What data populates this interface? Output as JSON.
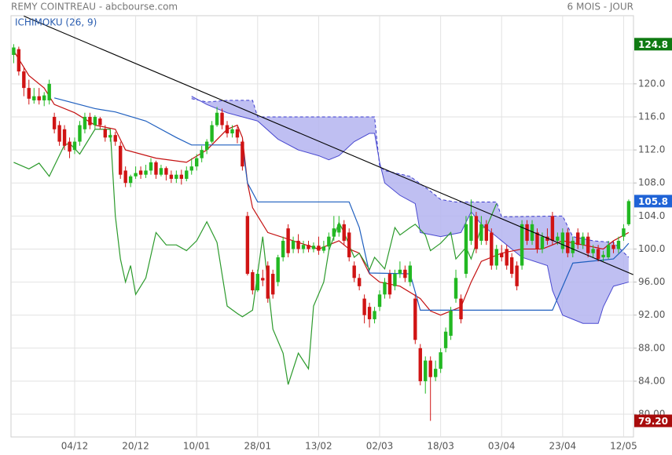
{
  "chart_data": {
    "type": "candlestick",
    "title": "REMY COINTREAU - abcbourse.com",
    "subtitle": "6 MOIS - JOUR",
    "indicator_label": "ICHIMOKU (26, 9)",
    "categories": [
      null,
      null,
      null,
      null,
      null,
      null,
      null,
      null,
      null,
      null,
      null,
      null,
      "04/12",
      null,
      null,
      null,
      null,
      null,
      null,
      null,
      null,
      null,
      null,
      null,
      "20/12",
      null,
      null,
      null,
      null,
      null,
      null,
      null,
      null,
      null,
      null,
      null,
      "10/01",
      null,
      null,
      null,
      null,
      null,
      null,
      null,
      null,
      null,
      null,
      null,
      "28/01",
      null,
      null,
      null,
      null,
      null,
      null,
      null,
      null,
      null,
      null,
      null,
      "13/02",
      null,
      null,
      null,
      null,
      null,
      null,
      null,
      null,
      null,
      null,
      null,
      "02/03",
      null,
      null,
      null,
      null,
      null,
      null,
      null,
      null,
      null,
      null,
      null,
      "18/03",
      null,
      null,
      null,
      null,
      null,
      null,
      null,
      null,
      null,
      null,
      null,
      "03/04",
      null,
      null,
      null,
      null,
      null,
      null,
      null,
      null,
      null,
      null,
      null,
      "23/04",
      null,
      null,
      null,
      null,
      null,
      null,
      null,
      null,
      null,
      null,
      null,
      "12/05",
      null
    ],
    "open": [
      123.5,
      124.2,
      121.5,
      119.5,
      118,
      118.5,
      118,
      118,
      116,
      115,
      114.5,
      113,
      112,
      113,
      114.5,
      116,
      115,
      115.8,
      114.5,
      113.5,
      113.8,
      112.5,
      109.5,
      108,
      108.8,
      109.5,
      109,
      109.5,
      110.5,
      109,
      109.8,
      109,
      108.5,
      109,
      108.5,
      109.5,
      110,
      111,
      112,
      113,
      115,
      116.5,
      115,
      114,
      114.5,
      113,
      104,
      97.2,
      95,
      96.5,
      98,
      97,
      96,
      99,
      102.5,
      100,
      101,
      100,
      100.5,
      100,
      100.4,
      99.8,
      100.3,
      101.5,
      102,
      103,
      102,
      98,
      96.5,
      94,
      93,
      91.5,
      93,
      94.5,
      97,
      95.5,
      97,
      97.5,
      96,
      94,
      88,
      84,
      86.5,
      84.5,
      85.5,
      88,
      89.5,
      94,
      94,
      97,
      101,
      104,
      101,
      103,
      102,
      98,
      99.5,
      100,
      99,
      98,
      98,
      103,
      101,
      102,
      100,
      101.5,
      104,
      101,
      100,
      102,
      99.5,
      102,
      100.5,
      101.5,
      99.5,
      100,
      99,
      99,
      100.5,
      100,
      101.5,
      103
    ],
    "high": [
      124.8,
      124.5,
      122,
      120.5,
      119.5,
      119.5,
      119,
      120.5,
      116.5,
      115.5,
      115,
      113.5,
      113.5,
      115.5,
      116.5,
      116.5,
      116.2,
      116,
      115,
      114.5,
      114.2,
      113,
      110,
      109,
      110,
      110,
      110.2,
      111,
      110.7,
      110.2,
      110,
      109.5,
      109.5,
      109.6,
      110,
      111,
      111.5,
      112.5,
      113.3,
      115.5,
      117.2,
      117,
      115.5,
      115,
      114.8,
      113.2,
      104.5,
      97.5,
      97.5,
      97.5,
      98.5,
      97.5,
      99.3,
      101.5,
      103,
      101.5,
      101.8,
      101,
      101,
      100.8,
      101.5,
      101,
      102,
      104,
      104,
      103.5,
      102.5,
      98.5,
      97,
      94.5,
      93.5,
      93,
      95,
      96.5,
      97.5,
      97.5,
      98.5,
      98,
      98.5,
      94.5,
      88.5,
      87,
      87,
      86.5,
      88,
      90.5,
      93,
      97.5,
      94.5,
      104,
      106,
      104.5,
      104,
      103.5,
      102.5,
      100.5,
      100.5,
      100.5,
      99.5,
      98.5,
      103.5,
      103.5,
      103.5,
      102.5,
      102,
      102.5,
      104.5,
      102,
      102.5,
      102.5,
      101.5,
      102.5,
      102,
      102,
      100.5,
      100.5,
      99.8,
      101,
      101,
      101.5,
      103,
      106
    ],
    "low": [
      122.5,
      121,
      118.5,
      117.5,
      117.6,
      117.5,
      117.3,
      117.5,
      114,
      112.5,
      112,
      111,
      111.5,
      112.5,
      114,
      114.5,
      114.5,
      114.5,
      113,
      113,
      112.5,
      108.5,
      107.5,
      107.5,
      108.5,
      108.5,
      108.6,
      109,
      108.5,
      108.8,
      108.3,
      108,
      108,
      107.8,
      108.2,
      109,
      109.5,
      110.5,
      111.5,
      112.8,
      114.8,
      114.5,
      113.5,
      113.5,
      112.8,
      109.5,
      96.8,
      94.5,
      94.8,
      95.5,
      93.5,
      94,
      95.5,
      98.5,
      99,
      99.5,
      99.5,
      99.5,
      99.6,
      99.6,
      99.3,
      99.5,
      99.8,
      101,
      101.5,
      100.5,
      98.5,
      96,
      95,
      91,
      90.5,
      91,
      92.5,
      94,
      94,
      95,
      96.5,
      96,
      95.5,
      88.5,
      83.5,
      82.5,
      79.2,
      84,
      85,
      87.5,
      89,
      93.5,
      91,
      96.5,
      100.5,
      99.5,
      100.5,
      100.5,
      97.5,
      97.5,
      98.5,
      97.5,
      96.5,
      95,
      97.5,
      100.5,
      100.5,
      99.5,
      99.5,
      100.5,
      100.5,
      100.5,
      99.5,
      99,
      99,
      100,
      100,
      99,
      99,
      98.5,
      98.5,
      98.8,
      99.5,
      99.5,
      101,
      102.8
    ],
    "close": [
      124.4,
      121.5,
      119.5,
      118.2,
      118.5,
      118,
      118.6,
      120,
      114.5,
      113,
      112.5,
      111.8,
      113,
      115,
      116,
      115,
      116,
      115,
      113.5,
      113.8,
      113,
      109,
      108,
      108.8,
      109.2,
      109,
      109.5,
      110.5,
      109,
      109.8,
      109,
      108.5,
      109,
      108.5,
      109.5,
      110,
      111,
      112,
      113,
      115,
      116.5,
      115,
      114,
      114.5,
      113.5,
      110,
      97,
      95,
      97,
      96.2,
      94,
      94.5,
      99,
      101,
      99.5,
      101,
      100,
      100.5,
      100,
      100.4,
      99.8,
      100.3,
      101.5,
      102.5,
      103,
      101,
      99,
      96.5,
      95.5,
      92,
      91.5,
      92.5,
      94.5,
      96,
      94.5,
      97,
      97.5,
      96.5,
      98,
      89,
      84,
      86.5,
      84.5,
      85.5,
      87.5,
      90,
      92.5,
      96.5,
      91.5,
      103,
      104,
      100,
      103,
      101,
      98,
      100,
      99,
      98,
      97,
      95.5,
      103,
      101,
      103,
      100,
      101.5,
      101,
      101,
      101.5,
      102,
      99.5,
      101,
      100.5,
      101.5,
      99.5,
      100,
      98.8,
      99.3,
      100.5,
      100,
      101,
      102.5,
      105.8
    ],
    "up_color": "#22b822",
    "down_color": "#d01414",
    "ylim": [
      77.25,
      128.25
    ],
    "yticks": [
      {
        "value": 80,
        "label": "80.00"
      },
      {
        "value": 84,
        "label": "84.00"
      },
      {
        "value": 88,
        "label": "88.00"
      },
      {
        "value": 92,
        "label": "92.00"
      },
      {
        "value": 96,
        "label": "96.00"
      },
      {
        "value": 100,
        "label": "100.0"
      },
      {
        "value": 104,
        "label": "104.0"
      },
      {
        "value": 108,
        "label": "108.0"
      },
      {
        "value": 112,
        "label": "112.0"
      },
      {
        "value": 116,
        "label": "116.0"
      },
      {
        "value": 120,
        "label": "120.0"
      }
    ],
    "grid": true,
    "cloud": {
      "fill": "#b4b4f0",
      "upper": {
        "color": "#3a3acc",
        "dashed": true,
        "x": [
          35,
          38,
          42,
          47,
          48,
          55,
          71,
          72,
          73,
          78,
          82,
          84,
          87,
          95,
          96,
          108,
          110,
          114,
          118,
          121
        ],
        "values": [
          118.2,
          117.8,
          118,
          118,
          116,
          116,
          116,
          110,
          109.5,
          108.8,
          107,
          106,
          105.7,
          105.7,
          103.9,
          104,
          101.5,
          101,
          100.8,
          99
        ]
      },
      "lower": {
        "color": "#4a4ad0",
        "dashed": false,
        "x": [
          35,
          38,
          42,
          45,
          48,
          52,
          56,
          60,
          62,
          64,
          67,
          70,
          71,
          72,
          73,
          76,
          79,
          80,
          84,
          88,
          90,
          92,
          95,
          100,
          105,
          106,
          108,
          112,
          115,
          116,
          118,
          121
        ],
        "values": [
          118.5,
          117.5,
          116.5,
          116,
          115.5,
          113.3,
          112,
          111.3,
          110.8,
          111.3,
          113,
          114,
          114,
          110.5,
          108,
          106.5,
          105.5,
          102,
          101.5,
          102,
          104.5,
          103,
          101.5,
          99,
          98,
          95,
          92,
          91,
          91,
          93,
          95.5,
          96
        ]
      }
    },
    "lines": [
      {
        "color": "#c41010",
        "x": [
          0,
          3,
          6,
          8,
          12,
          16,
          20,
          22,
          28,
          34,
          38,
          42,
          44,
          45,
          46,
          47,
          50,
          55,
          60,
          64,
          66,
          68,
          70,
          72,
          76,
          80,
          82,
          84,
          88,
          90,
          92,
          94,
          96,
          100,
          104,
          108,
          112,
          116,
          118,
          121
        ],
        "values": [
          124,
          121,
          119.5,
          117.5,
          116.5,
          115,
          114.5,
          112,
          111,
          110.5,
          112,
          114.5,
          115,
          113.5,
          108,
          105,
          102,
          101,
          100,
          101,
          100,
          99.5,
          97,
          96,
          95.5,
          94,
          92.5,
          92,
          93,
          96,
          98.5,
          99,
          99.5,
          100,
          100,
          101,
          100.5,
          100,
          101,
          102
        ]
      },
      {
        "color": "#1f5fbf",
        "x": [
          8,
          16,
          20,
          26,
          32,
          35,
          45,
          46,
          48,
          66,
          68,
          70,
          78,
          80,
          106,
          110,
          118,
          120,
          121
        ],
        "values": [
          118.3,
          117,
          116.6,
          115.5,
          113.5,
          112.6,
          112.6,
          108,
          105.7,
          105.7,
          102.6,
          97.1,
          97,
          92.6,
          92.6,
          98.3,
          98.8,
          100,
          100.7
        ]
      },
      {
        "color": "#2c9a2c",
        "x": [
          0,
          3,
          5,
          7,
          10,
          11,
          13,
          16,
          19,
          20,
          21,
          22,
          23,
          24,
          26,
          28,
          30,
          32,
          34,
          36,
          38,
          40,
          42,
          44,
          45,
          47,
          49,
          51,
          53,
          54,
          56,
          58,
          59,
          61,
          62,
          64,
          65,
          67,
          68,
          70,
          71,
          73,
          75,
          76,
          78,
          79,
          81,
          82,
          84,
          86,
          87,
          89,
          90,
          92,
          93,
          95
        ],
        "values": [
          110.5,
          109.7,
          110.4,
          108.8,
          112.6,
          112.8,
          111.5,
          114.5,
          114.5,
          104,
          98.8,
          96,
          98,
          94.5,
          96.5,
          102,
          100.5,
          100.5,
          99.8,
          101,
          103.3,
          100.8,
          93.1,
          92.2,
          91.8,
          92.6,
          101.5,
          90.3,
          87.4,
          83.6,
          87.4,
          85.5,
          93.1,
          96,
          99.8,
          103.2,
          102,
          99,
          99.5,
          97.5,
          99,
          97.6,
          102.6,
          101.7,
          102.6,
          103,
          101.7,
          99.8,
          100.7,
          102,
          98.8,
          100.2,
          98.8,
          102.6,
          102.6,
          105.5
        ]
      }
    ],
    "trendline": {
      "color": "#000000",
      "x": [
        2,
        121.9
      ],
      "values": [
        128.2,
        96.9
      ]
    },
    "price_tags": [
      {
        "value": 124.8,
        "color": "#0f7a12"
      },
      {
        "value": 105.8,
        "color": "#1f63d6"
      },
      {
        "value": 79.2,
        "label": "79.20",
        "color": "#a80c0c"
      }
    ]
  }
}
